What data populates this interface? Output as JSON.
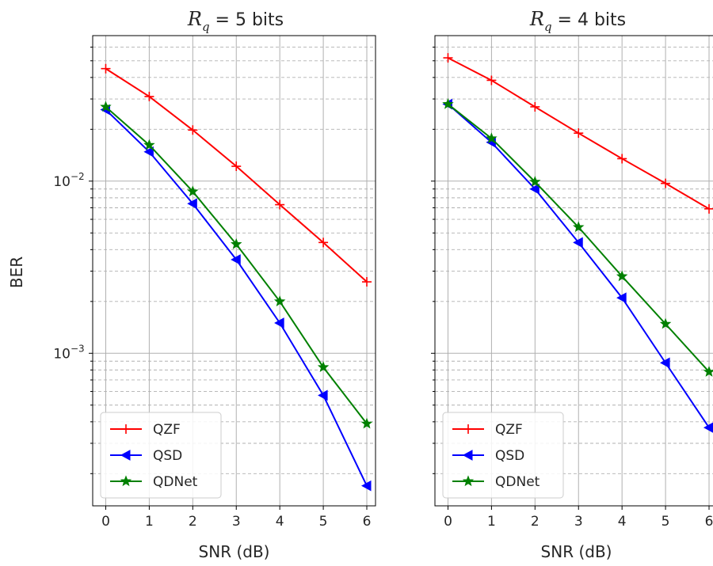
{
  "figure": {
    "ylabel": "BER",
    "axis_ticks_y": {
      "major": [
        "10",
        "10"
      ],
      "major_exp": [
        "−2",
        "−3"
      ]
    }
  },
  "colors": {
    "QZF": "#ff0000",
    "QSD": "#0000ff",
    "QDNet": "#008000"
  },
  "chart_data": [
    {
      "type": "line",
      "title_symbol": "R",
      "title_subscript": "q",
      "title_rest": " = 5 bits",
      "xlabel": "SNR (dB)",
      "ylabel": "BER",
      "x": [
        0,
        1,
        2,
        3,
        4,
        5,
        6
      ],
      "xlim": [
        -0.3,
        6.2
      ],
      "ylim": [
        0.00013,
        0.07
      ],
      "yscale": "log",
      "grid": "major and minor",
      "legend": "lower-left",
      "series": [
        {
          "name": "QZF",
          "marker": "+",
          "values": [
            0.045,
            0.031,
            0.0198,
            0.0122,
            0.0073,
            0.0044,
            0.0026
          ]
        },
        {
          "name": "QSD",
          "marker": "left-triangle",
          "values": [
            0.026,
            0.0148,
            0.0074,
            0.0035,
            0.0015,
            0.00057,
            0.00017
          ]
        },
        {
          "name": "QDNet",
          "marker": "star",
          "values": [
            0.027,
            0.0162,
            0.0087,
            0.0043,
            0.002,
            0.00083,
            0.00039
          ]
        }
      ]
    },
    {
      "type": "line",
      "title_symbol": "R",
      "title_subscript": "q",
      "title_rest": " = 4 bits",
      "xlabel": "SNR (dB)",
      "ylabel": "",
      "x": [
        0,
        1,
        2,
        3,
        4,
        5,
        6
      ],
      "xlim": [
        -0.3,
        6.2
      ],
      "ylim": [
        0.00013,
        0.07
      ],
      "yscale": "log",
      "grid": "major and minor",
      "legend": "lower-left",
      "series": [
        {
          "name": "QZF",
          "marker": "+",
          "values": [
            0.052,
            0.0385,
            0.027,
            0.019,
            0.0135,
            0.0097,
            0.0069
          ]
        },
        {
          "name": "QSD",
          "marker": "left-triangle",
          "values": [
            0.028,
            0.0168,
            0.009,
            0.0044,
            0.0021,
            0.00088,
            0.00037
          ]
        },
        {
          "name": "QDNet",
          "marker": "star",
          "values": [
            0.028,
            0.0177,
            0.0099,
            0.0054,
            0.0028,
            0.00148,
            0.00078
          ]
        }
      ]
    }
  ]
}
